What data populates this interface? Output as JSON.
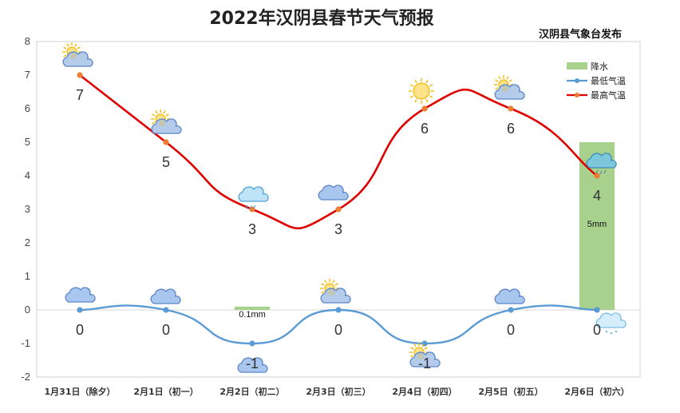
{
  "chart_data": {
    "type": "line",
    "title": "2022年汉阴县春节天气预报",
    "subtitle": "汉阴县气象台发布",
    "categories": [
      "1月31日（除夕）",
      "2月1日（初一）",
      "2月2日（初二）",
      "2月3日（初三）",
      "2月4日（初四）",
      "2月5日（初五）",
      "2月6日（初六）"
    ],
    "series": [
      {
        "name": "最低气温",
        "type": "line",
        "color": "#5B9BD5",
        "values": [
          0,
          0,
          -1,
          0,
          -1,
          0,
          0
        ]
      },
      {
        "name": "最高气温",
        "type": "line",
        "color": "#E00000",
        "values": [
          7,
          5,
          3,
          3,
          6,
          6,
          4
        ]
      },
      {
        "name": "降水",
        "type": "bar",
        "color": "#A9D18E",
        "values": [
          null,
          null,
          0.1,
          null,
          null,
          null,
          5
        ],
        "labels": [
          "",
          "",
          "0.1mm",
          "",
          "",
          "",
          "5mm"
        ]
      }
    ],
    "ylim": [
      -2,
      8
    ],
    "yticks": [
      -2,
      -1,
      0,
      1,
      2,
      3,
      4,
      5,
      6,
      7,
      8
    ],
    "xlabel": "",
    "ylabel": "",
    "legend_position": "top-right",
    "grid": false,
    "weather_icons_high": [
      "sunny-cloudy-icon",
      "sunny-cloudy-icon",
      "light-rain-icon",
      "cloudy-icon",
      "sunny-icon",
      "sunny-cloudy-icon",
      "rain-icon"
    ],
    "weather_icons_low": [
      "cloudy-icon",
      "cloudy-icon",
      "cloudy-icon",
      "sunny-cloudy-icon",
      "sunny-cloudy-icon",
      "cloudy-icon",
      "snow-icon"
    ]
  }
}
